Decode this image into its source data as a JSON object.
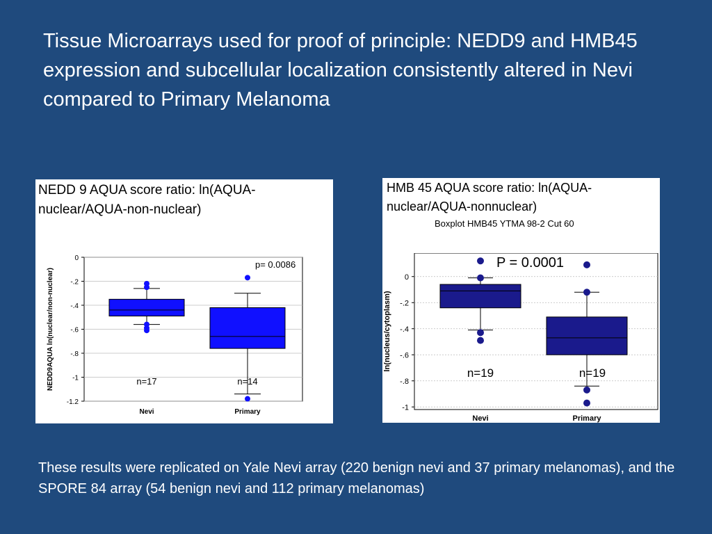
{
  "slide": {
    "title": "Tissue Microarrays used for proof of principle: NEDD9 and HMB45 expression and subcellular localization consistently altered in Nevi compared to Primary Melanoma",
    "footnote": "These results were replicated on Yale Nevi array (220 benign nevi and 37 primary melanomas), and the SPORE 84 array (54 benign nevi and 112 primary melanomas)"
  },
  "left_panel": {
    "caption": "NEDD 9 AQUA score ratio: ln(AQUA-nuclear/AQUA-non-nuclear)"
  },
  "right_panel": {
    "caption": "HMB 45 AQUA score ratio: ln(AQUA-nuclear/AQUA-nonnuclear)",
    "subcaption": "Boxplot HMB45 YTMA 98-2 Cut 60"
  },
  "chart_data": [
    {
      "type": "box",
      "ylabel": "NEDD9AQUA ln(nuclear/non-nuclear)",
      "ylim": [
        -1.2,
        0
      ],
      "yticks": [
        0,
        -0.2,
        -0.4,
        -0.6,
        -0.8,
        -1,
        -1.2
      ],
      "ytick_labels": [
        "0",
        "-.2",
        "-.4",
        "-.6",
        "-.8",
        "-1",
        "-1.2"
      ],
      "categories": [
        "Nevi",
        "Primary"
      ],
      "boxes": [
        {
          "q1": -0.49,
          "median": -0.44,
          "q3": -0.35,
          "whisker_low": -0.56,
          "whisker_high": -0.26,
          "outliers": [
            -0.22,
            -0.25,
            -0.56,
            -0.59,
            -0.61
          ]
        },
        {
          "q1": -0.76,
          "median": -0.66,
          "q3": -0.42,
          "whisker_low": -1.14,
          "whisker_high": -0.3,
          "outliers": [
            -0.17,
            -1.18
          ]
        }
      ],
      "n_labels": [
        "n=17",
        "n=14"
      ],
      "annotation": "p= 0.0086",
      "color": "#1010ff",
      "grid": true
    },
    {
      "type": "box",
      "ylabel": "ln(nucleus/cytoplasm)",
      "ylim": [
        -1.02,
        0.18
      ],
      "yticks": [
        0,
        -0.2,
        -0.4,
        -0.6,
        -0.8,
        -1
      ],
      "ytick_labels": [
        "0",
        "-.2",
        "-.4",
        "-.6",
        "-.8",
        "-1"
      ],
      "categories": [
        "Nevi",
        "Primary"
      ],
      "boxes": [
        {
          "q1": -0.24,
          "median": -0.11,
          "q3": -0.06,
          "whisker_low": -0.41,
          "whisker_high": -0.01,
          "outliers": [
            0.12,
            -0.01,
            -0.43,
            -0.49
          ]
        },
        {
          "q1": -0.6,
          "median": -0.47,
          "q3": -0.31,
          "whisker_low": -0.84,
          "whisker_high": -0.12,
          "outliers": [
            0.09,
            -0.12,
            -0.87,
            -0.97
          ]
        }
      ],
      "n_labels": [
        "n=19",
        "n=19"
      ],
      "annotation": "P = 0.0001",
      "color": "#1a1a8c",
      "grid": true
    }
  ]
}
